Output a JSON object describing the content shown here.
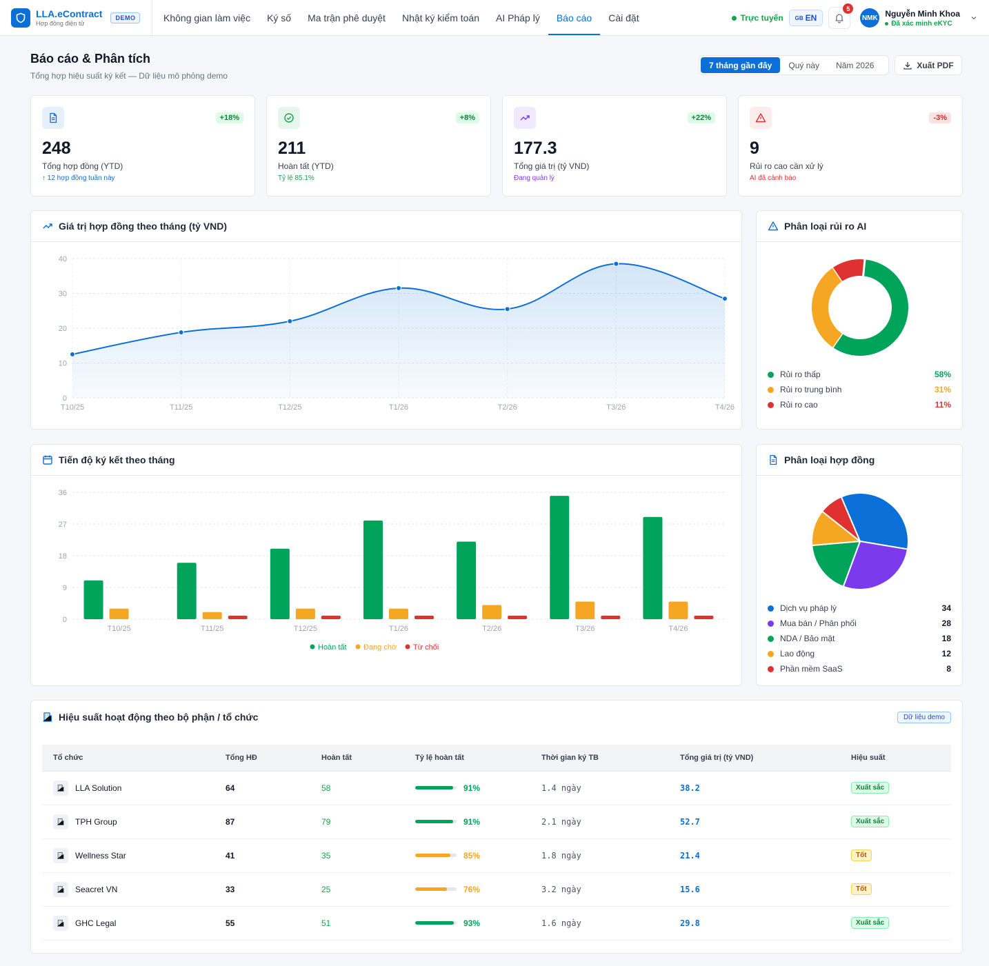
{
  "brand": {
    "name": "LLA.eContract",
    "subtitle": "Hợp đồng điện tử",
    "badge": "DEMO"
  },
  "nav": [
    {
      "label": "Không gian làm việc",
      "active": false
    },
    {
      "label": "Ký số",
      "active": false
    },
    {
      "label": "Ma trận phê duyệt",
      "active": false
    },
    {
      "label": "Nhật ký kiểm toán",
      "active": false
    },
    {
      "label": "AI Pháp lý",
      "active": false
    },
    {
      "label": "Báo cáo",
      "active": true
    },
    {
      "label": "Cài đặt",
      "active": false
    }
  ],
  "topbar": {
    "online": "Trực tuyến",
    "lang_flag": "GB",
    "lang": "EN",
    "notifications": "5",
    "avatar": "NMK",
    "user_name": "Nguyễn Minh Khoa",
    "user_status": "Đã xác minh eKYC"
  },
  "page": {
    "title": "Báo cáo & Phân tích",
    "subtitle": "Tổng hợp hiệu suất ký kết — Dữ liệu mô phỏng demo",
    "periods": [
      "7 tháng gần đây",
      "Quý này",
      "Năm 2026"
    ],
    "active_period": 0,
    "export": "Xuất PDF"
  },
  "kpis": [
    {
      "value": "248",
      "label": "Tổng hợp đồng (YTD)",
      "change": "+18%",
      "note": "↑ 12 hợp đồng tuần này",
      "icon": "document-icon",
      "accent": "#0a6fd6",
      "positive": true
    },
    {
      "value": "211",
      "label": "Hoàn tất (YTD)",
      "change": "+8%",
      "note": "Tỷ lệ 85.1%",
      "icon": "check-circle-icon",
      "accent": "#16a34a",
      "positive": true
    },
    {
      "value": "177.3",
      "label": "Tổng giá trị (tỷ VND)",
      "change": "+22%",
      "note": "Đang quản lý",
      "icon": "trend-up-icon",
      "accent": "#7c3aed",
      "positive": true
    },
    {
      "value": "9",
      "label": "Rủi ro cao cần xử lý",
      "change": "-3%",
      "note": "AI đã cảnh báo",
      "icon": "warning-icon",
      "accent": "#e03131",
      "positive": false
    }
  ],
  "line_card": {
    "title": "Giá trị hợp đồng theo tháng (tỷ VND)"
  },
  "bar_card": {
    "title": "Tiến độ ký kết theo tháng"
  },
  "risk_card": {
    "title": "Phân loại rủi ro AI"
  },
  "type_card": {
    "title": "Phân loại hợp đồng"
  },
  "chart_data": [
    {
      "type": "area",
      "title": "Giá trị hợp đồng theo tháng (tỷ VND)",
      "categories": [
        "T10/25",
        "T11/25",
        "T12/25",
        "T1/26",
        "T2/26",
        "T3/26",
        "T4/26"
      ],
      "values": [
        12.5,
        18.8,
        22,
        31.5,
        25.5,
        38.5,
        28.5
      ],
      "yticks": [
        "0",
        "10",
        "20",
        "30",
        "40"
      ],
      "ylim": [
        0,
        40
      ],
      "color": "#0a6fd6",
      "grid": true
    },
    {
      "type": "bar",
      "title": "Tiến độ ký kết theo tháng",
      "categories": [
        "T10/25",
        "T11/25",
        "T12/25",
        "T1/26",
        "T2/26",
        "T3/26",
        "T4/26"
      ],
      "series": [
        {
          "name": "Hoàn tất",
          "color": "#00a35a",
          "values": [
            11,
            16,
            20,
            28,
            22,
            35,
            29
          ]
        },
        {
          "name": "Đang chờ",
          "color": "#f5a623",
          "values": [
            3,
            2,
            3,
            3,
            4,
            5,
            5
          ]
        },
        {
          "name": "Từ chối",
          "color": "#e03131",
          "values": [
            0,
            1,
            1,
            1,
            1,
            1,
            1
          ]
        }
      ],
      "yticks": [
        "0",
        "9",
        "18",
        "27",
        "36"
      ],
      "ylim": [
        0,
        36
      ],
      "legend": "bottom",
      "grid": true
    },
    {
      "type": "pie",
      "title": "Phân loại rủi ro AI",
      "donut": true,
      "labels": [
        "Rủi ro thấp",
        "Rủi ro trung bình",
        "Rủi ro cao"
      ],
      "values": [
        58,
        31,
        11
      ],
      "display": [
        "58%",
        "31%",
        "11%"
      ],
      "colors": [
        "#00a35a",
        "#f5a623",
        "#e03131"
      ]
    },
    {
      "type": "pie",
      "title": "Phân loại hợp đồng",
      "donut": false,
      "labels": [
        "Dịch vụ pháp lý",
        "Mua bán / Phân phối",
        "NDA / Bảo mật",
        "Lao động",
        "Phần mềm SaaS"
      ],
      "values": [
        34,
        28,
        18,
        12,
        8
      ],
      "display": [
        "34",
        "28",
        "18",
        "12",
        "8"
      ],
      "colors": [
        "#0a6fd6",
        "#7c3aed",
        "#00a35a",
        "#f5a623",
        "#e03131"
      ]
    }
  ],
  "performance": {
    "title": "Hiệu suất hoạt động theo bộ phận / tổ chức",
    "badge": "Dữ liệu demo",
    "columns": [
      "Tổ chức",
      "Tổng HĐ",
      "Hoàn tất",
      "Tỷ lệ hoàn tất",
      "Thời gian ký TB",
      "Tổng giá trị (tỷ VND)",
      "Hiệu suất"
    ],
    "rows": [
      {
        "org": "LLA Solution",
        "total": "64",
        "done": "58",
        "rate": 91,
        "rate_label": "91%",
        "time": "1.4 ngày",
        "value": "38.2",
        "grade": "Xuất sắc",
        "level": "excellent"
      },
      {
        "org": "TPH Group",
        "total": "87",
        "done": "79",
        "rate": 91,
        "rate_label": "91%",
        "time": "2.1 ngày",
        "value": "52.7",
        "grade": "Xuất sắc",
        "level": "excellent"
      },
      {
        "org": "Wellness Star",
        "total": "41",
        "done": "35",
        "rate": 85,
        "rate_label": "85%",
        "time": "1.8 ngày",
        "value": "21.4",
        "grade": "Tốt",
        "level": "good"
      },
      {
        "org": "Seacret VN",
        "total": "33",
        "done": "25",
        "rate": 76,
        "rate_label": "76%",
        "time": "3.2 ngày",
        "value": "15.6",
        "grade": "Tốt",
        "level": "good"
      },
      {
        "org": "GHC Legal",
        "total": "55",
        "done": "51",
        "rate": 93,
        "rate_label": "93%",
        "time": "1.6 ngày",
        "value": "29.8",
        "grade": "Xuất sắc",
        "level": "excellent"
      }
    ]
  }
}
